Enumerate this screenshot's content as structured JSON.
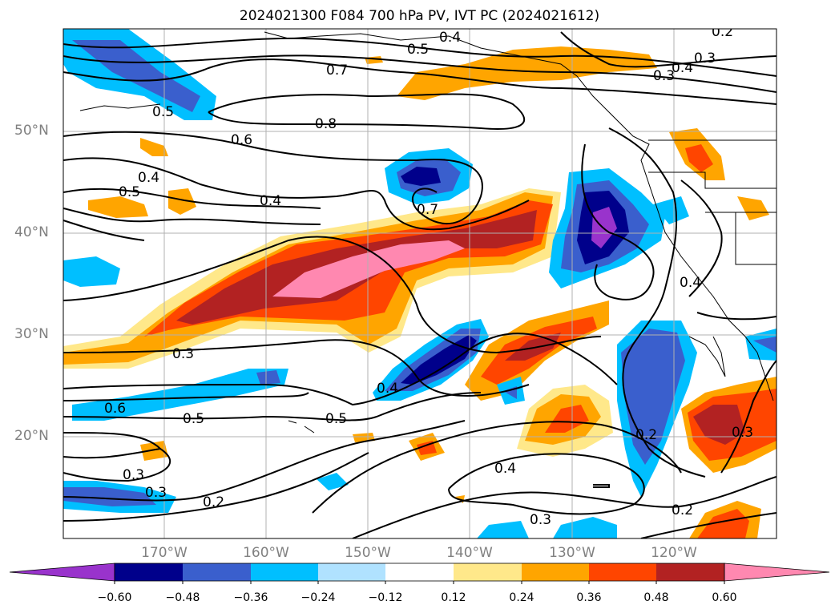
{
  "title": "2024021300 F084 700 hPa PV, IVT PC (2024021612)",
  "lat_labels": [
    "50°N",
    "40°N",
    "30°N",
    "20°N"
  ],
  "lon_labels": [
    "170°W",
    "160°W",
    "150°W",
    "140°W",
    "130°W",
    "120°W"
  ],
  "contour_labels": [
    "0.4",
    "0.5",
    "0.7",
    "0.8",
    "0.6",
    "0.5",
    "0.4",
    "0.5",
    "0.4",
    "0.7",
    "0.3",
    "0.5",
    "0.4",
    "0.2",
    "0.3",
    "0.4",
    "0.3",
    "0.4",
    "0.6",
    "0.5",
    "0.3",
    "0.3",
    "0.2",
    "0.4",
    "0.2",
    "0.3",
    "0.2",
    "0.3"
  ],
  "colorbar": {
    "ticks": [
      "−0.60",
      "−0.48",
      "−0.36",
      "−0.24",
      "−0.12",
      "0.12",
      "0.24",
      "0.36",
      "0.48",
      "0.60"
    ],
    "colors": [
      "#9933cc",
      "#00008b",
      "#3a5fcd",
      "#00bfff",
      "#b0e2ff",
      "#ffffff",
      "#ffe88a",
      "#ffa500",
      "#ff4500",
      "#b22222",
      "#ff88b0",
      "#ff88b0"
    ]
  }
}
